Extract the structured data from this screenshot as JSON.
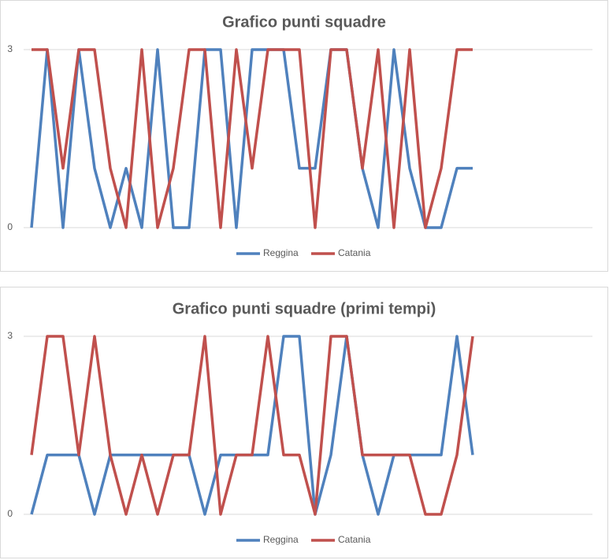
{
  "chart_data": [
    {
      "type": "line",
      "title": "Grafico punti squadre",
      "categories": [
        null,
        null,
        null,
        null,
        null,
        null,
        null,
        null,
        null,
        null,
        null,
        null,
        null,
        null,
        null,
        null,
        null,
        null,
        null,
        null,
        null,
        null,
        null,
        null,
        null,
        null,
        null,
        null,
        null
      ],
      "series": [
        {
          "name": "Reggina",
          "color": "#4f81bd",
          "values": [
            0,
            3,
            0,
            3,
            1,
            0,
            1,
            0,
            3,
            0,
            0,
            3,
            3,
            0,
            3,
            3,
            3,
            1,
            1,
            3,
            3,
            1,
            0,
            3,
            1,
            0,
            0,
            1,
            1
          ]
        },
        {
          "name": "Catania",
          "color": "#c0504d",
          "values": [
            3,
            3,
            1,
            3,
            3,
            1,
            0,
            3,
            0,
            1,
            3,
            3,
            0,
            3,
            1,
            3,
            3,
            3,
            0,
            3,
            3,
            1,
            3,
            0,
            3,
            0,
            1,
            3,
            3
          ]
        }
      ],
      "ylim": [
        0,
        3
      ],
      "yticks": [
        0,
        3
      ],
      "grid": true,
      "legend": "bottom"
    },
    {
      "type": "line",
      "title": "Grafico punti squadre (primi tempi)",
      "categories": [
        null,
        null,
        null,
        null,
        null,
        null,
        null,
        null,
        null,
        null,
        null,
        null,
        null,
        null,
        null,
        null,
        null,
        null,
        null,
        null,
        null,
        null,
        null,
        null,
        null,
        null,
        null,
        null,
        null
      ],
      "series": [
        {
          "name": "Reggina",
          "color": "#4f81bd",
          "values": [
            0,
            1,
            1,
            1,
            0,
            1,
            1,
            1,
            1,
            1,
            1,
            0,
            1,
            1,
            1,
            1,
            3,
            3,
            0,
            1,
            3,
            1,
            0,
            1,
            1,
            1,
            1,
            3,
            1
          ]
        },
        {
          "name": "Catania",
          "color": "#c0504d",
          "values": [
            1,
            3,
            3,
            1,
            3,
            1,
            0,
            1,
            0,
            1,
            1,
            3,
            0,
            1,
            1,
            3,
            1,
            1,
            0,
            3,
            3,
            1,
            1,
            1,
            1,
            0,
            0,
            1,
            3
          ]
        }
      ],
      "ylim": [
        0,
        3
      ],
      "yticks": [
        0,
        3
      ],
      "grid": true,
      "legend": "bottom"
    }
  ]
}
